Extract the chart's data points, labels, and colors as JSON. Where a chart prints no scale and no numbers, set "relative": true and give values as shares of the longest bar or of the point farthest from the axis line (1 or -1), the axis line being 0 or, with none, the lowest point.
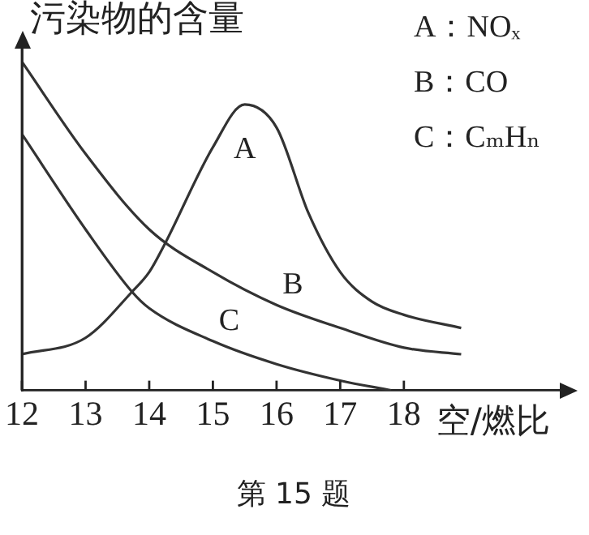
{
  "chart_data": {
    "type": "line",
    "relative": true,
    "ylabel": "污染物的含量",
    "xlabel": "空/燃比",
    "xlim": [
      12,
      20.5
    ],
    "xticks": [
      12,
      13,
      14,
      15,
      16,
      17,
      18
    ],
    "tick_labels": "x",
    "marker": "none",
    "line_style": "solid",
    "legend": false,
    "annotations": [
      "A：NOₓ",
      "B：CO",
      "C：CₘHₙ",
      "第 15 题"
    ],
    "series": [
      {
        "name": "A",
        "color": "#333333",
        "x": [
          12,
          13,
          13.73,
          14,
          14.23,
          15,
          15.5,
          16,
          16.5,
          17,
          17.5,
          18,
          18.9
        ],
        "values": [
          0.11,
          0.16,
          0.3,
          0.36,
          0.44,
          0.74,
          0.87,
          0.8,
          0.54,
          0.36,
          0.27,
          0.23,
          0.19
        ]
      },
      {
        "name": "B",
        "color": "#333333",
        "x": [
          12,
          13,
          14,
          15,
          16,
          17,
          18,
          18.9
        ],
        "values": [
          1,
          0.72,
          0.49,
          0.36,
          0.26,
          0.19,
          0.13,
          0.11
        ]
      },
      {
        "name": "C",
        "color": "#333333",
        "x": [
          12,
          13,
          13.73,
          14,
          15,
          16,
          17,
          17.8
        ],
        "values": [
          0.78,
          0.49,
          0.3,
          0.25,
          0.15,
          0.08,
          0.03,
          0
        ]
      }
    ]
  }
}
